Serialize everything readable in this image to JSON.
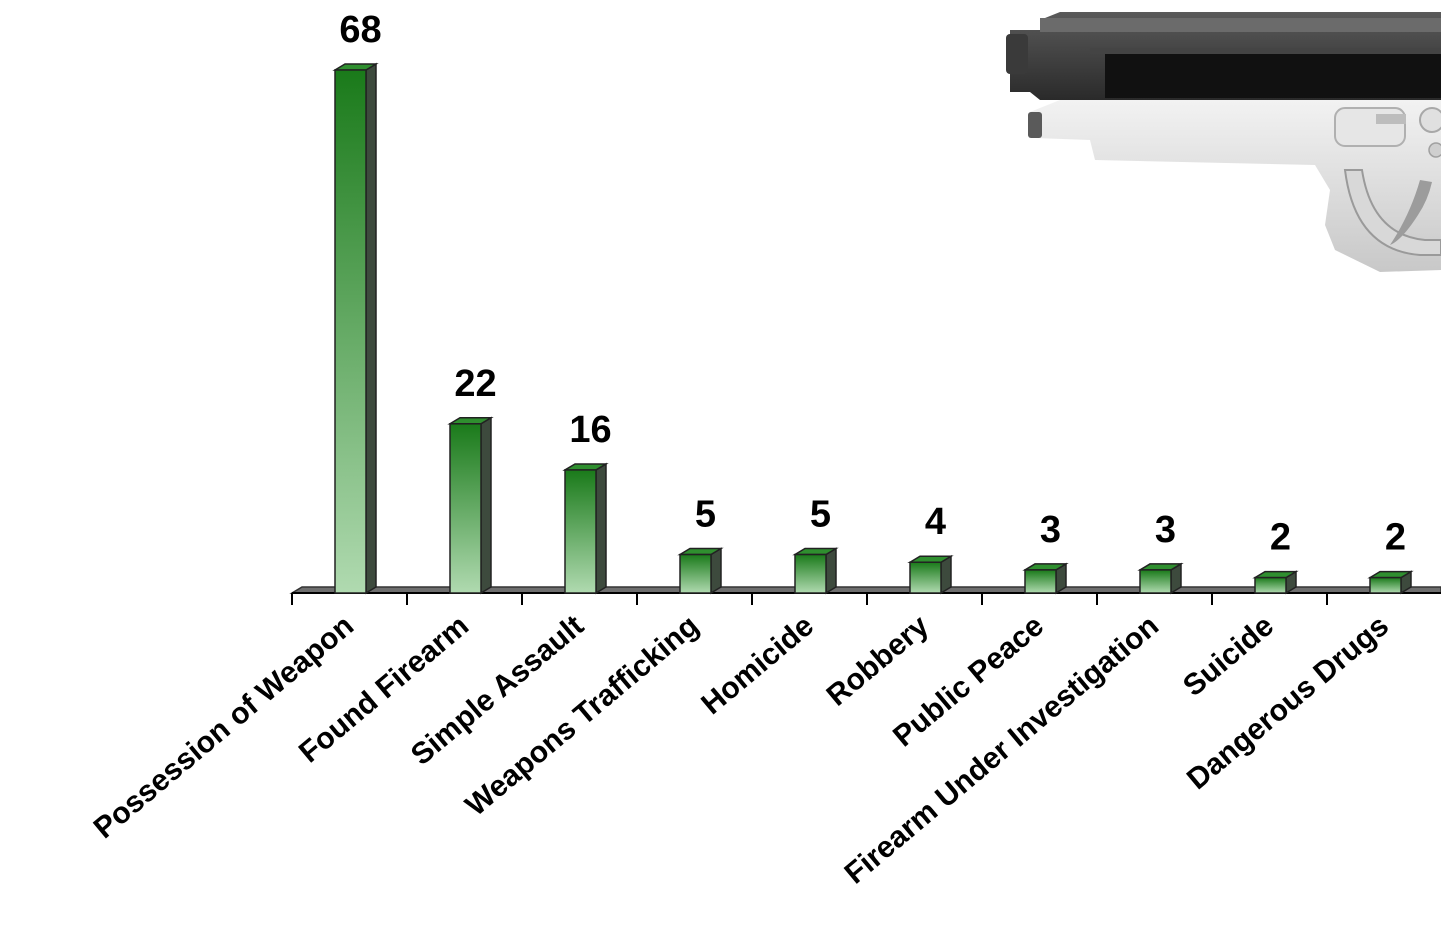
{
  "chart_data": {
    "type": "bar",
    "style": "3d-column",
    "categories": [
      "Possession of Weapon",
      "Found Firearm",
      "Simple Assault",
      "Weapons Trafficking",
      "Homicide",
      "Robbery",
      "Public Peace",
      "Firearm Under Investigation",
      "Suicide",
      "Dangerous Drugs"
    ],
    "values": [
      68,
      22,
      16,
      5,
      5,
      4,
      3,
      3,
      2,
      2
    ],
    "data_labels": [
      "68",
      "22",
      "16",
      "5",
      "5",
      "4",
      "3",
      "3",
      "2",
      "2"
    ],
    "title": "",
    "xlabel": "",
    "ylabel": "",
    "ylim": [
      0,
      68
    ],
    "grid": false,
    "legend": "none",
    "bar_gradient_top": "#1a7a1a",
    "bar_gradient_bottom": "#b0dab0",
    "bar_side_color": "#3d4a3d",
    "floor_color": "#6e6e6e"
  },
  "decoration": {
    "image": "pistol-illustration",
    "placement": "top-right"
  }
}
